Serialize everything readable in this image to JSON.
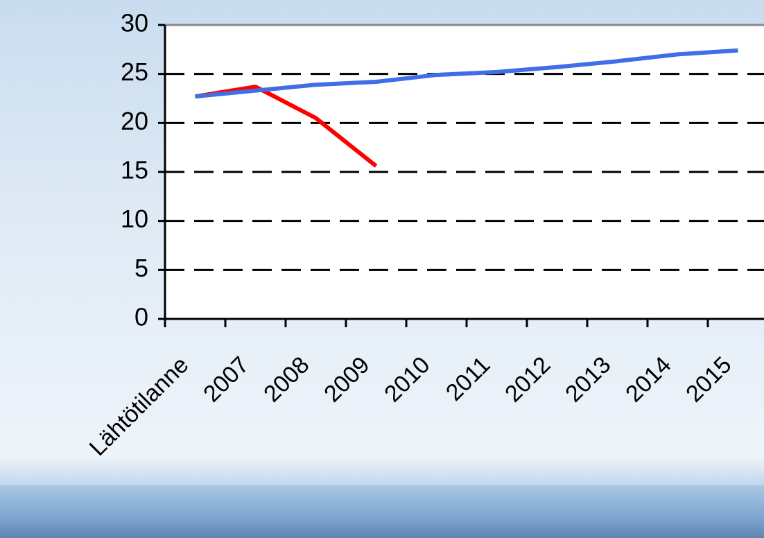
{
  "chart_data": {
    "type": "line",
    "categories": [
      "Lähtötilanne",
      "2007",
      "2008",
      "2009",
      "2010",
      "2011",
      "2012",
      "2013",
      "2014",
      "2015"
    ],
    "series": [
      {
        "color": "#3f6ee6",
        "values": [
          22.7,
          23.3,
          23.9,
          24.2,
          24.9,
          25.2,
          25.7,
          26.3,
          27.0,
          27.4
        ]
      },
      {
        "color": "#ff0000",
        "values": [
          22.7,
          23.7,
          20.5,
          15.6,
          null,
          null,
          null,
          null,
          null,
          null
        ]
      }
    ],
    "ylim": [
      0,
      30
    ],
    "yticks": [
      0,
      5,
      10,
      15,
      20,
      25,
      30
    ],
    "grid": true
  }
}
